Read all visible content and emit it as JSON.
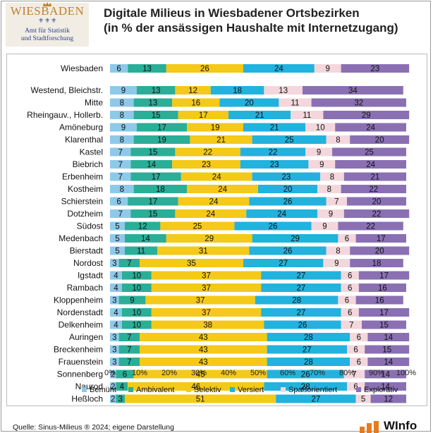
{
  "logo": {
    "city": "WIESBADEN",
    "org_line1": "Amt für Statistik",
    "org_line2": "und Stadtforschung"
  },
  "title": {
    "line1": "Digitale Milieus in Wiesbadener Ortsbezirken",
    "line2": "(in % der ansässigen Haushalte mit Internetzugang)"
  },
  "source": "Quelle: Sinus-Milieus ® 2024; eigene Darstellung",
  "brand": "WInfo",
  "chart_data": {
    "type": "bar",
    "orientation": "horizontal",
    "stacked": true,
    "xlim": [
      0,
      100
    ],
    "x_ticks": [
      "0%",
      "10%",
      "20%",
      "30%",
      "40%",
      "50%",
      "60%",
      "70%",
      "80%",
      "90%",
      "100%"
    ],
    "grid": false,
    "legend_position": "bottom",
    "categories": [
      "Wiesbaden",
      "Westend, Bleichstr.",
      "Mitte",
      "Rheingauv., Hollerb.",
      "Amöneburg",
      "Klarenthal",
      "Kastel",
      "Biebrich",
      "Erbenheim",
      "Kostheim",
      "Schierstein",
      "Dotzheim",
      "Südost",
      "Medenbach",
      "Bierstadt",
      "Nordost",
      "Igstadt",
      "Rambach",
      "Kloppenheim",
      "Nordenstadt",
      "Delkenheim",
      "Auringen",
      "Breckenheim",
      "Frauenstein",
      "Sonnenberg",
      "Naurod",
      "Heßloch"
    ],
    "series": [
      {
        "name": "Bemüht",
        "color": "#8ec9e9",
        "values": [
          6,
          9,
          8,
          8,
          9,
          8,
          7,
          7,
          7,
          8,
          6,
          7,
          5,
          5,
          5,
          3,
          4,
          4,
          3,
          4,
          4,
          3,
          3,
          3,
          2,
          2,
          2
        ]
      },
      {
        "name": "Ambivalent",
        "color": "#2bae97",
        "values": [
          13,
          13,
          13,
          15,
          17,
          19,
          15,
          14,
          17,
          18,
          17,
          15,
          12,
          14,
          11,
          7,
          10,
          10,
          9,
          10,
          10,
          7,
          7,
          7,
          6,
          4,
          3
        ]
      },
      {
        "name": "Selektiv",
        "color": "#f4c918",
        "values": [
          26,
          12,
          16,
          17,
          19,
          21,
          22,
          23,
          24,
          24,
          24,
          24,
          25,
          29,
          31,
          35,
          37,
          37,
          37,
          37,
          38,
          43,
          43,
          43,
          45,
          46,
          51
        ]
      },
      {
        "name": "Versiert",
        "color": "#22b2de",
        "values": [
          24,
          18,
          20,
          21,
          21,
          25,
          22,
          23,
          23,
          20,
          26,
          24,
          26,
          29,
          26,
          27,
          27,
          27,
          28,
          27,
          26,
          28,
          27,
          28,
          26,
          28,
          27
        ]
      },
      {
        "name": "Spaßorientiert",
        "color": "#f3d7dc",
        "values": [
          9,
          13,
          11,
          11,
          10,
          8,
          9,
          9,
          8,
          8,
          7,
          9,
          9,
          6,
          8,
          9,
          6,
          6,
          6,
          6,
          7,
          6,
          6,
          6,
          7,
          6,
          5
        ]
      },
      {
        "name": "Explorativ",
        "color": "#8a70b3",
        "values": [
          23,
          34,
          32,
          29,
          24,
          20,
          25,
          24,
          21,
          22,
          20,
          22,
          22,
          17,
          20,
          18,
          17,
          16,
          16,
          17,
          15,
          14,
          15,
          14,
          14,
          14,
          12
        ]
      }
    ]
  }
}
